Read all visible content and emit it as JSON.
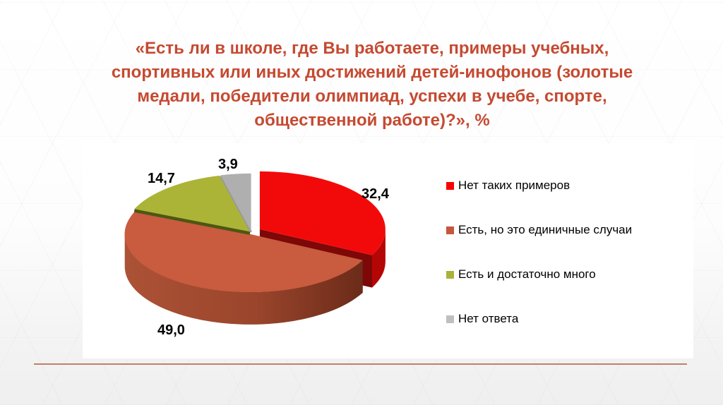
{
  "slide": {
    "title_lines": [
      "«Есть ли в школе, где Вы работаете, примеры учебных,",
      "спортивных или иных достижений детей-инофонов (золотые",
      "медали, победители олимпиад, успехи в учебе, спорте,",
      "общественной работе)?», %"
    ],
    "title_color": "#C54A31",
    "divider_color": "#C08068"
  },
  "chart_data": {
    "type": "pie",
    "style": "3d-exploded",
    "title": "«Есть ли в школе, где Вы работаете, примеры учебных, спортивных или иных достижений детей-инофонов (золотые медали, победители олимпиад, успехи в учебе, спорте, общественной работе)?», %",
    "unit": "%",
    "legend_position": "right",
    "series": [
      {
        "name": "Нет таких примеров",
        "value": 32.4,
        "label": "32,4",
        "color": "#F20A0A",
        "side_color": "#B50606",
        "side_dark": "#7E0707",
        "legend_color": "#F70303"
      },
      {
        "name": "Есть, но это единичные случаи",
        "value": 49.0,
        "label": "49,0",
        "color": "#C95B3E",
        "side_color": "#AC5236",
        "side_dark": "#6B2B19",
        "legend_color": "#C4573E"
      },
      {
        "name": "Есть и достаточно много",
        "value": 14.7,
        "label": "14,7",
        "color": "#ACB437",
        "side_color": "#4C5712",
        "side_dark": "#4C5712",
        "legend_color": "#AAB23A"
      },
      {
        "name": "Нет ответа",
        "value": 3.9,
        "label": "3,9",
        "color": "#AFAFAF",
        "side_color": "#9A9A9A",
        "side_dark": "#9A9A9A",
        "legend_color": "#BFBFBF"
      }
    ]
  }
}
